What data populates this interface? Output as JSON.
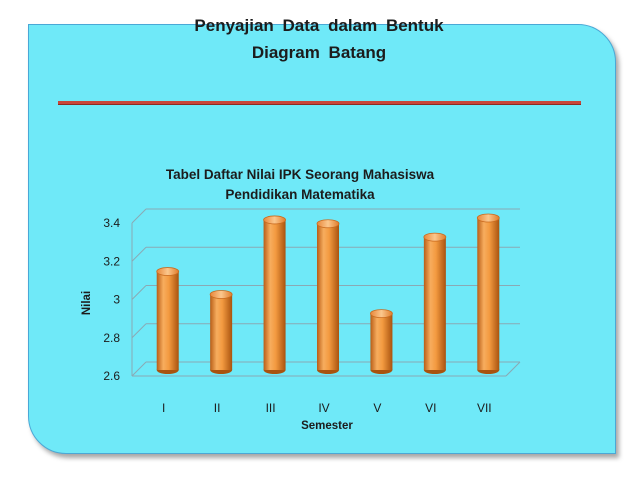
{
  "slide": {
    "title_line1": "Penyajian  Data  dalam  Bentuk",
    "title_line2": "Diagram Batang"
  },
  "colors": {
    "background": "#6fe9f8",
    "bar": "#f0953a",
    "divider": "#c8463a"
  },
  "chart_data": {
    "type": "bar",
    "title": "Tabel Daftar Nilai IPK Seorang Mahasiswa Pendidikan Matematika",
    "title_line1": "Tabel Daftar Nilai IPK Seorang Mahasiswa",
    "title_line2": "Pendidikan Matematika",
    "xlabel": "Semester",
    "ylabel": "Nilai",
    "categories": [
      "I",
      "II",
      "III",
      "IV",
      "V",
      "VI",
      "VII"
    ],
    "values": [
      3.12,
      3.0,
      3.39,
      3.37,
      2.9,
      3.3,
      3.4
    ],
    "ylim": [
      2.6,
      3.4
    ],
    "yticks": [
      "2.6",
      "2.8",
      "3",
      "3.2",
      "3.4"
    ],
    "grid": true,
    "legend": "none",
    "style": "3d-cylinder"
  }
}
